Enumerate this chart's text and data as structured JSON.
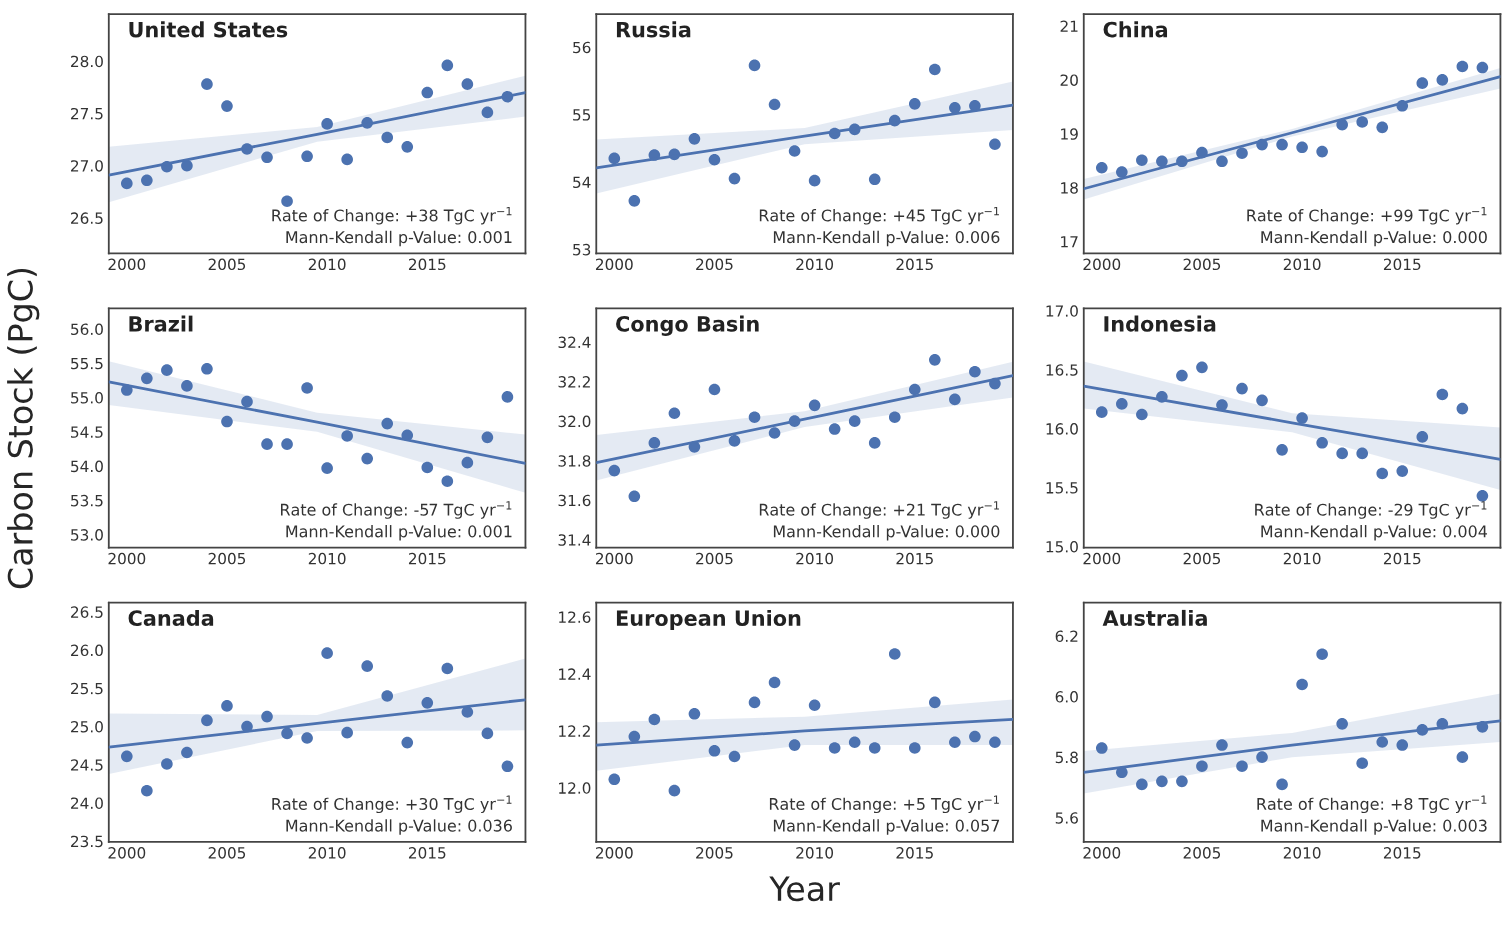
{
  "chart_data": [
    {
      "type": "scatter",
      "title": "United States",
      "xlim": [
        1999.1,
        2019.9
      ],
      "xticks": [
        2000,
        2005,
        2010,
        2015
      ],
      "ylim": [
        26.16,
        28.45
      ],
      "yticks": [
        26.5,
        {
          "value": 27,
          "label": "27.0"
        },
        27.5,
        {
          "value": 28,
          "label": "28.0"
        }
      ],
      "series": [
        {
          "type": "scatter",
          "marker": "circle",
          "color": "#4c72b0",
          "x": [
            2000,
            2001,
            2002,
            2003,
            2004,
            2005,
            2006,
            2007,
            2008,
            2009,
            2010,
            2011,
            2012,
            2013,
            2014,
            2015,
            2016,
            2017,
            2018,
            2019
          ],
          "values": [
            26.83,
            26.86,
            26.99,
            27.0,
            27.78,
            27.57,
            27.16,
            27.08,
            26.66,
            27.09,
            27.4,
            27.06,
            27.41,
            27.27,
            27.18,
            27.7,
            27.96,
            27.78,
            27.51,
            27.66
          ]
        },
        {
          "type": "line",
          "marker": "none",
          "color": "#4c72b0",
          "x": [
            1999.1,
            2009.5,
            2019.9
          ],
          "values": [
            26.91,
            27.3,
            27.7
          ],
          "lower": [
            26.65,
            27.23,
            27.47
          ],
          "upper": [
            27.18,
            27.37,
            27.86
          ]
        }
      ],
      "annotations": [
        "Rate of Change: +38 TgC yr$^{−1}$",
        "Mann-Kendall p-Value: 0.001"
      ]
    },
    {
      "type": "scatter",
      "title": "Russia",
      "xlim": [
        1999.1,
        2019.9
      ],
      "xticks": [
        2000,
        2005,
        2010,
        2015
      ],
      "ylim": [
        52.94,
        56.49
      ],
      "yticks": [
        53,
        54,
        55,
        56
      ],
      "series": [
        {
          "type": "scatter",
          "marker": "circle",
          "color": "#4c72b0",
          "x": [
            2000,
            2001,
            2002,
            2003,
            2004,
            2005,
            2006,
            2007,
            2008,
            2009,
            2010,
            2011,
            2012,
            2013,
            2014,
            2015,
            2016,
            2017,
            2018,
            2019
          ],
          "values": [
            54.35,
            53.72,
            54.4,
            54.41,
            54.64,
            54.33,
            54.05,
            55.73,
            55.15,
            54.46,
            54.02,
            54.72,
            54.78,
            54.04,
            54.91,
            55.16,
            55.67,
            55.1,
            55.13,
            54.56
          ]
        },
        {
          "type": "line",
          "marker": "none",
          "color": "#4c72b0",
          "x": [
            1999.1,
            2009.5,
            2019.9
          ],
          "values": [
            54.21,
            54.68,
            55.14
          ],
          "lower": [
            53.83,
            54.56,
            54.77
          ],
          "upper": [
            54.63,
            54.8,
            55.49
          ]
        }
      ],
      "annotations": [
        "Rate of Change: +45 TgC yr$^{−1}$",
        "Mann-Kendall p-Value: 0.006"
      ]
    },
    {
      "type": "scatter",
      "title": "China",
      "xlim": [
        1999.1,
        2019.9
      ],
      "xticks": [
        2000,
        2005,
        2010,
        2015
      ],
      "ylim": [
        16.78,
        21.22
      ],
      "yticks": [
        17,
        18,
        19,
        20,
        21
      ],
      "series": [
        {
          "type": "scatter",
          "marker": "circle",
          "color": "#4c72b0",
          "x": [
            2000,
            2001,
            2002,
            2003,
            2004,
            2005,
            2006,
            2007,
            2008,
            2009,
            2010,
            2011,
            2012,
            2013,
            2014,
            2015,
            2016,
            2017,
            2018,
            2019
          ],
          "values": [
            18.37,
            18.29,
            18.51,
            18.49,
            18.49,
            18.65,
            18.49,
            18.64,
            18.8,
            18.8,
            18.75,
            18.67,
            19.17,
            19.22,
            19.12,
            19.52,
            19.94,
            20.0,
            20.25,
            20.23
          ]
        },
        {
          "type": "line",
          "marker": "none",
          "color": "#4c72b0",
          "x": [
            1999.1,
            2009.5,
            2019.9
          ],
          "values": [
            17.98,
            19.02,
            20.06
          ],
          "lower": [
            17.78,
            18.95,
            19.84
          ],
          "upper": [
            18.16,
            19.09,
            20.22
          ]
        }
      ],
      "annotations": [
        "Rate of Change: +99 TgC yr$^{−1}$",
        "Mann-Kendall p-Value: 0.000"
      ]
    },
    {
      "type": "scatter",
      "title": "Brazil",
      "ylabel": "Carbon Stock (PgC)",
      "xlim": [
        1999.1,
        2019.9
      ],
      "xticks": [
        2000,
        2005,
        2010,
        2015
      ],
      "ylim": [
        52.81,
        56.3
      ],
      "yticks": [
        {
          "value": 53,
          "label": "53.0"
        },
        53.5,
        {
          "value": 54,
          "label": "54.0"
        },
        54.5,
        {
          "value": 55,
          "label": "55.0"
        },
        55.5,
        {
          "value": 56,
          "label": "56.0"
        }
      ],
      "series": [
        {
          "type": "scatter",
          "marker": "circle",
          "color": "#4c72b0",
          "x": [
            2000,
            2001,
            2002,
            2003,
            2004,
            2005,
            2006,
            2007,
            2008,
            2009,
            2010,
            2011,
            2012,
            2013,
            2014,
            2015,
            2016,
            2017,
            2018,
            2019
          ],
          "values": [
            55.11,
            55.28,
            55.4,
            55.17,
            55.42,
            54.65,
            54.94,
            54.32,
            54.32,
            55.14,
            53.97,
            54.44,
            54.11,
            54.62,
            54.45,
            53.98,
            53.78,
            54.05,
            54.42,
            55.01
          ]
        },
        {
          "type": "line",
          "marker": "none",
          "color": "#4c72b0",
          "x": [
            1999.1,
            2009.5,
            2019.9
          ],
          "values": [
            55.23,
            54.64,
            54.04
          ],
          "lower": [
            54.89,
            54.5,
            53.61
          ],
          "upper": [
            55.53,
            54.78,
            54.46
          ]
        }
      ],
      "annotations": [
        "Rate of Change: -57 TgC yr$^{−1}$",
        "Mann-Kendall p-Value: 0.001"
      ]
    },
    {
      "type": "scatter",
      "title": "Congo Basin",
      "xlim": [
        1999.1,
        2019.9
      ],
      "xticks": [
        2000,
        2005,
        2010,
        2015
      ],
      "ylim": [
        31.36,
        32.57
      ],
      "yticks": [
        31.4,
        31.6,
        31.8,
        {
          "value": 32,
          "label": "32.0"
        },
        32.2,
        32.4
      ],
      "series": [
        {
          "type": "scatter",
          "marker": "circle",
          "color": "#4c72b0",
          "x": [
            2000,
            2001,
            2002,
            2003,
            2004,
            2005,
            2006,
            2007,
            2008,
            2009,
            2010,
            2011,
            2012,
            2013,
            2014,
            2015,
            2016,
            2017,
            2018,
            2019
          ],
          "values": [
            31.75,
            31.62,
            31.89,
            32.04,
            31.87,
            32.16,
            31.9,
            32.02,
            31.94,
            32.0,
            32.08,
            31.96,
            32.0,
            31.89,
            32.02,
            32.16,
            32.31,
            32.11,
            32.25,
            32.19
          ]
        },
        {
          "type": "line",
          "marker": "none",
          "color": "#4c72b0",
          "x": [
            1999.1,
            2009.5,
            2019.9
          ],
          "values": [
            31.79,
            32.01,
            32.23
          ],
          "lower": [
            31.7,
            31.97,
            32.12
          ],
          "upper": [
            31.93,
            32.05,
            32.3
          ]
        }
      ],
      "annotations": [
        "Rate of Change: +21 TgC yr$^{−1}$",
        "Mann-Kendall p-Value: 0.000"
      ]
    },
    {
      "type": "scatter",
      "title": "Indonesia",
      "xlim": [
        1999.1,
        2019.9
      ],
      "xticks": [
        2000,
        2005,
        2010,
        2015
      ],
      "ylim": [
        14.99,
        17.02
      ],
      "yticks": [
        {
          "value": 15,
          "label": "15.0"
        },
        15.5,
        {
          "value": 16,
          "label": "16.0"
        },
        16.5,
        {
          "value": 17,
          "label": "17.0"
        }
      ],
      "series": [
        {
          "type": "scatter",
          "marker": "circle",
          "color": "#4c72b0",
          "x": [
            2000,
            2001,
            2002,
            2003,
            2004,
            2005,
            2006,
            2007,
            2008,
            2009,
            2010,
            2011,
            2012,
            2013,
            2014,
            2015,
            2016,
            2017,
            2018,
            2019
          ],
          "values": [
            16.14,
            16.21,
            16.12,
            16.27,
            16.45,
            16.52,
            16.2,
            16.34,
            16.24,
            15.82,
            16.09,
            15.88,
            15.79,
            15.79,
            15.62,
            15.64,
            15.93,
            16.29,
            16.17,
            15.43
          ]
        },
        {
          "type": "line",
          "marker": "none",
          "color": "#4c72b0",
          "x": [
            1999.1,
            2009.5,
            2019.9
          ],
          "values": [
            16.36,
            16.05,
            15.74
          ],
          "lower": [
            16.17,
            15.97,
            15.48
          ],
          "upper": [
            16.57,
            16.13,
            16.01
          ]
        }
      ],
      "annotations": [
        "Rate of Change: -29 TgC yr$^{−1}$",
        "Mann-Kendall p-Value: 0.004"
      ]
    },
    {
      "type": "scatter",
      "title": "Canada",
      "xlim": [
        1999.1,
        2019.9
      ],
      "xticks": [
        2000,
        2005,
        2010,
        2015
      ],
      "ylim": [
        23.49,
        26.62
      ],
      "yticks": [
        23.5,
        {
          "value": 24,
          "label": "24.0"
        },
        24.5,
        {
          "value": 25,
          "label": "25.0"
        },
        25.5,
        {
          "value": 26,
          "label": "26.0"
        },
        26.5
      ],
      "series": [
        {
          "type": "scatter",
          "marker": "circle",
          "color": "#4c72b0",
          "x": [
            2000,
            2001,
            2002,
            2003,
            2004,
            2005,
            2006,
            2007,
            2008,
            2009,
            2010,
            2011,
            2012,
            2013,
            2014,
            2015,
            2016,
            2017,
            2018,
            2019
          ],
          "values": [
            24.61,
            24.16,
            24.51,
            24.66,
            25.08,
            25.27,
            25.0,
            25.13,
            24.91,
            24.85,
            25.96,
            24.92,
            25.79,
            25.4,
            24.79,
            25.31,
            25.76,
            25.19,
            24.91,
            24.48
          ]
        },
        {
          "type": "line",
          "marker": "none",
          "color": "#4c72b0",
          "x": [
            1999.1,
            2009.5,
            2019.9
          ],
          "values": [
            24.73,
            25.04,
            25.35
          ],
          "lower": [
            24.38,
            24.94,
            24.95
          ],
          "upper": [
            25.17,
            25.15,
            25.89
          ]
        }
      ],
      "annotations": [
        "Rate of Change: +30 TgC yr$^{−1}$",
        "Mann-Kendall p-Value: 0.036"
      ]
    },
    {
      "type": "scatter",
      "title": "European Union",
      "xlabel": "Year",
      "xlim": [
        1999.1,
        2019.9
      ],
      "xticks": [
        2000,
        2005,
        2010,
        2015
      ],
      "ylim": [
        11.81,
        12.65
      ],
      "yticks": [
        {
          "value": 12,
          "label": "12.0"
        },
        12.2,
        12.4,
        12.6
      ],
      "series": [
        {
          "type": "scatter",
          "marker": "circle",
          "color": "#4c72b0",
          "x": [
            2000,
            2001,
            2002,
            2003,
            2004,
            2005,
            2006,
            2007,
            2008,
            2009,
            2010,
            2011,
            2012,
            2013,
            2014,
            2015,
            2016,
            2017,
            2018,
            2019
          ],
          "values": [
            12.03,
            12.18,
            12.24,
            11.99,
            12.26,
            12.13,
            12.11,
            12.3,
            12.37,
            12.15,
            12.29,
            12.14,
            12.16,
            12.14,
            12.47,
            12.14,
            12.3,
            12.16,
            12.18,
            12.16
          ]
        },
        {
          "type": "line",
          "marker": "none",
          "color": "#4c72b0",
          "x": [
            1999.1,
            2009.5,
            2019.9
          ],
          "values": [
            12.15,
            12.2,
            12.24
          ],
          "lower": [
            12.06,
            12.15,
            12.15
          ],
          "upper": [
            12.23,
            12.25,
            12.31
          ]
        }
      ],
      "annotations": [
        "Rate of Change: +5 TgC yr$^{−1}$",
        "Mann-Kendall p-Value: 0.057"
      ]
    },
    {
      "type": "scatter",
      "title": "Australia",
      "xlim": [
        1999.1,
        2019.9
      ],
      "xticks": [
        2000,
        2005,
        2010,
        2015
      ],
      "ylim": [
        5.52,
        6.31
      ],
      "yticks": [
        5.6,
        5.8,
        {
          "value": 6,
          "label": "6.0"
        },
        6.2
      ],
      "series": [
        {
          "type": "scatter",
          "marker": "circle",
          "color": "#4c72b0",
          "x": [
            2000,
            2001,
            2002,
            2003,
            2004,
            2005,
            2006,
            2007,
            2008,
            2009,
            2010,
            2011,
            2012,
            2013,
            2014,
            2015,
            2016,
            2017,
            2018,
            2019
          ],
          "values": [
            5.83,
            5.75,
            5.71,
            5.72,
            5.72,
            5.77,
            5.84,
            5.77,
            5.8,
            5.71,
            6.04,
            6.14,
            5.91,
            5.78,
            5.85,
            5.84,
            5.89,
            5.91,
            5.8,
            5.9
          ]
        },
        {
          "type": "line",
          "marker": "none",
          "color": "#4c72b0",
          "x": [
            1999.1,
            2009.5,
            2019.9
          ],
          "values": [
            5.75,
            5.84,
            5.92
          ],
          "lower": [
            5.68,
            5.8,
            5.85
          ],
          "upper": [
            5.82,
            5.88,
            6.01
          ]
        }
      ],
      "annotations": [
        "Rate of Change: +8 TgC yr$^{−1}$",
        "Mann-Kendall p-Value: 0.003"
      ]
    }
  ]
}
